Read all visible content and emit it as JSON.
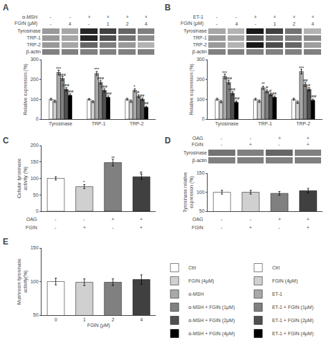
{
  "chart_data": [
    {
      "type": "heatmap",
      "title": "A",
      "rows": [
        "Tyrosinase",
        "TRP-1",
        "TRP-2",
        "β-actin"
      ],
      "conditions": [
        {
          "name": "α-MSH",
          "labels": [
            "-",
            "-",
            "+",
            "+",
            "+",
            "+"
          ]
        },
        {
          "name": "FGIN (μM)",
          "labels": [
            "-",
            "4",
            "-",
            "1",
            "2",
            "4"
          ]
        }
      ],
      "cells": [
        [
          0.4,
          0.35,
          0.85,
          0.75,
          0.6,
          0.5
        ],
        [
          0.4,
          0.35,
          0.85,
          0.7,
          0.55,
          0.45
        ],
        [
          0.4,
          0.35,
          0.6,
          0.5,
          0.4,
          0.3
        ],
        [
          0.5,
          0.5,
          0.5,
          0.5,
          0.5,
          0.5
        ]
      ],
      "zlim": [
        0,
        1
      ],
      "tick_labels": "y"
    },
    {
      "type": "bar",
      "categories": [
        "Tyrosinase",
        "TRP-1",
        "TRP-2"
      ],
      "series": [
        {
          "name": "Ctrl",
          "color": "#ffffff",
          "values": [
            100,
            100,
            100
          ],
          "errors": [
            5,
            4,
            5
          ]
        },
        {
          "name": "FGIN (4μM)",
          "color": "#d0d0d0",
          "values": [
            90,
            88,
            90
          ],
          "errors": [
            6,
            5,
            6
          ]
        },
        {
          "name": "α-MSH",
          "color": "#a8a8a8",
          "values": [
            235,
            230,
            145
          ],
          "errors": [
            12,
            10,
            8
          ]
        },
        {
          "name": "α-MSH + FGIN (1μM)",
          "color": "#808080",
          "values": [
            205,
            185,
            115
          ],
          "errors": [
            10,
            9,
            7
          ]
        },
        {
          "name": "α-MSH + FGIN (2μM)",
          "color": "#505050",
          "values": [
            150,
            145,
            100
          ],
          "errors": [
            8,
            8,
            6
          ]
        },
        {
          "name": "α-MSH + FGIN (4μM)",
          "color": "#000000",
          "values": [
            120,
            110,
            60
          ],
          "errors": [
            7,
            7,
            5
          ]
        }
      ],
      "ylabel": "Relative expression (%)",
      "ylim": [
        0,
        300
      ],
      "yticks": [
        0,
        100,
        200,
        300
      ],
      "grid": false,
      "legend": "lower right",
      "annotations": [
        {
          "text": "***",
          "x": 0,
          "series": "α-MSH",
          "y": 237
        },
        {
          "text": "###",
          "x": 0,
          "series": "α-MSH + FGIN (1μM)",
          "y": 207
        },
        {
          "text": "###",
          "x": 0,
          "series": "α-MSH + FGIN (2μM)",
          "y": 152
        },
        {
          "text": "###",
          "x": 0,
          "series": "α-MSH + FGIN (4μM)",
          "y": 122
        },
        {
          "text": "***",
          "x": 1,
          "series": "α-MSH",
          "y": 232
        },
        {
          "text": "###",
          "x": 1,
          "series": "α-MSH + FGIN (1μM)",
          "y": 187
        },
        {
          "text": "###",
          "x": 1,
          "series": "α-MSH + FGIN (2μM)",
          "y": 147
        },
        {
          "text": "###",
          "x": 1,
          "series": "α-MSH + FGIN (4μM)",
          "y": 112
        },
        {
          "text": "*",
          "x": 2,
          "series": "α-MSH",
          "y": 147
        },
        {
          "text": "#",
          "x": 2,
          "series": "α-MSH + FGIN (1μM)",
          "y": 117
        },
        {
          "text": "##",
          "x": 2,
          "series": "α-MSH + FGIN (2μM)",
          "y": 102
        },
        {
          "text": "##",
          "x": 2,
          "series": "α-MSH + FGIN (4μM)",
          "y": 62
        }
      ]
    },
    {
      "type": "heatmap",
      "title": "B",
      "rows": [
        "Tyrosinase",
        "TRP-1",
        "TRP-2",
        "β-actin"
      ],
      "conditions": [
        {
          "name": "ET-1",
          "labels": [
            "-",
            "-",
            "+",
            "+",
            "+",
            "+"
          ]
        },
        {
          "name": "FGIN (μM)",
          "labels": [
            "-",
            "4",
            "-",
            "1",
            "2",
            "4"
          ]
        }
      ],
      "cells": [
        [
          0.35,
          0.3,
          0.9,
          0.75,
          0.55,
          0.3
        ],
        [
          0.4,
          0.35,
          0.65,
          0.55,
          0.5,
          0.45
        ],
        [
          0.4,
          0.3,
          0.9,
          0.7,
          0.6,
          0.38
        ],
        [
          0.5,
          0.5,
          0.5,
          0.5,
          0.5,
          0.5
        ]
      ],
      "zlim": [
        0,
        1
      ],
      "tick_labels": "y"
    },
    {
      "type": "bar",
      "categories": [
        "Tyrosinase",
        "TRP-1",
        "TRP-2"
      ],
      "series": [
        {
          "name": "Ctrl",
          "color": "#ffffff",
          "values": [
            100,
            100,
            100
          ],
          "errors": [
            5,
            5,
            5
          ]
        },
        {
          "name": "FGIN (4μM)",
          "color": "#d0d0d0",
          "values": [
            88,
            90,
            85
          ],
          "errors": [
            6,
            6,
            6
          ]
        },
        {
          "name": "ET-1",
          "color": "#a8a8a8",
          "values": [
            215,
            158,
            240
          ],
          "errors": [
            12,
            8,
            12
          ]
        },
        {
          "name": "ET-1 + FGIN (1μM)",
          "color": "#808080",
          "values": [
            185,
            140,
            175
          ],
          "errors": [
            10,
            7,
            10
          ]
        },
        {
          "name": "ET-1 + FGIN (2μM)",
          "color": "#505050",
          "values": [
            130,
            125,
            150
          ],
          "errors": [
            8,
            7,
            8
          ]
        },
        {
          "name": "ET-1 + FGIN (4μM)",
          "color": "#000000",
          "values": [
            85,
            110,
            95
          ],
          "errors": [
            6,
            6,
            6
          ]
        }
      ],
      "ylabel": "Relative expression (%)",
      "ylim": [
        0,
        300
      ],
      "yticks": [
        0,
        100,
        200,
        300
      ],
      "grid": false,
      "legend": "lower right",
      "annotations": [
        {
          "text": "***",
          "x": 0,
          "series": "ET-1",
          "y": 217
        },
        {
          "text": "###",
          "x": 0,
          "series": "ET-1 + FGIN (1μM)",
          "y": 187
        },
        {
          "text": "###",
          "x": 0,
          "series": "ET-1 + FGIN (2μM)",
          "y": 132
        },
        {
          "text": "###",
          "x": 0,
          "series": "ET-1 + FGIN (4μM)",
          "y": 87
        },
        {
          "text": "**",
          "x": 1,
          "series": "ET-1",
          "y": 160
        },
        {
          "text": "#",
          "x": 1,
          "series": "ET-1 + FGIN (1μM)",
          "y": 142
        },
        {
          "text": "#",
          "x": 1,
          "series": "ET-1 + FGIN (2μM)",
          "y": 127
        },
        {
          "text": "##",
          "x": 1,
          "series": "ET-1 + FGIN (4μM)",
          "y": 112
        },
        {
          "text": "***",
          "x": 2,
          "series": "ET-1",
          "y": 242
        },
        {
          "text": "##",
          "x": 2,
          "series": "ET-1 + FGIN (1μM)",
          "y": 177
        },
        {
          "text": "#",
          "x": 2,
          "series": "ET-1 + FGIN (2μM)",
          "y": 152
        },
        {
          "text": "###",
          "x": 2,
          "series": "ET-1 + FGIN (4μM)",
          "y": 97
        }
      ]
    },
    {
      "type": "bar",
      "title": "C",
      "categories": [
        null,
        null,
        null,
        null
      ],
      "values": [
        100,
        75,
        148,
        105
      ],
      "errors": [
        5,
        6,
        10,
        8
      ],
      "colors": [
        "#ffffff",
        "#d0d0d0",
        "#808080",
        "#404040"
      ],
      "ylabel": "Cellular tyrosinase\nactivity (%)",
      "ylim": [
        0,
        200
      ],
      "yticks": [
        0,
        50,
        100,
        150,
        200
      ],
      "grid": false,
      "tick_labels": "y",
      "conditions": [
        {
          "name": "OAG",
          "labels": [
            "-",
            "-",
            "+",
            "+"
          ]
        },
        {
          "name": "FGIN",
          "labels": [
            "-",
            "+",
            "-",
            "+"
          ]
        }
      ],
      "annotations": [
        {
          "text": "*",
          "x": 1,
          "y": 78
        },
        {
          "text": "**",
          "x": 2,
          "y": 151
        },
        {
          "text": "#",
          "x": 3,
          "y": 108
        }
      ]
    },
    {
      "type": "heatmap",
      "title": "D",
      "rows": [
        "Tyrosinase",
        "β-actin"
      ],
      "conditions": [
        {
          "name": "OAG",
          "labels": [
            "-",
            "-",
            "+",
            "+"
          ]
        },
        {
          "name": "FGIN",
          "labels": [
            "-",
            "+",
            "-",
            "+"
          ]
        }
      ],
      "cells": [
        [
          0.55,
          0.5,
          0.6,
          0.5
        ],
        [
          0.5,
          0.5,
          0.5,
          0.5
        ]
      ],
      "zlim": [
        0,
        1
      ],
      "tick_labels": "y"
    },
    {
      "type": "bar",
      "categories": [
        null,
        null,
        null,
        null
      ],
      "values": [
        100,
        100,
        97,
        104
      ],
      "errors": [
        5,
        5,
        5,
        6
      ],
      "colors": [
        "#ffffff",
        "#d0d0d0",
        "#808080",
        "#404040"
      ],
      "ylabel": "Tyrosinase relative\nexpression (%)",
      "ylim": [
        50,
        150
      ],
      "yticks": [
        50,
        100,
        150
      ],
      "grid": false,
      "tick_labels": "y",
      "conditions": [
        {
          "name": "OAG",
          "labels": [
            "-",
            "-",
            "+",
            "+"
          ]
        },
        {
          "name": "FGIN",
          "labels": [
            "-",
            "+",
            "-",
            "+"
          ]
        }
      ]
    },
    {
      "type": "bar",
      "title": "E",
      "categories": [
        "0",
        "1",
        "2",
        "4"
      ],
      "values": [
        100,
        99,
        99,
        103
      ],
      "errors": [
        5,
        5,
        5,
        7
      ],
      "colors": [
        "#ffffff",
        "#d0d0d0",
        "#808080",
        "#404040"
      ],
      "ylabel": "Mushroom tyrosinase\nactivity(%)",
      "xlabel": "FGIN (μM)",
      "ylim": [
        50,
        150
      ],
      "yticks": [
        50,
        100,
        150
      ],
      "grid": false
    }
  ]
}
